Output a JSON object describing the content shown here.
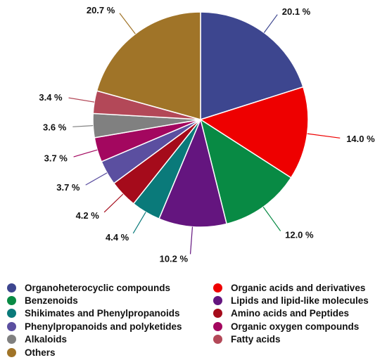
{
  "chart_data": {
    "type": "pie",
    "title": "",
    "start_angle_deg": 0,
    "direction": "clockwise",
    "slices": [
      {
        "label": "Organoheterocyclic compounds",
        "value": 20.1,
        "display": "20.1 %",
        "color": "#3d468f"
      },
      {
        "label": "Organic acids and derivatives",
        "value": 14.0,
        "display": "14.0 %",
        "color": "#ee0000"
      },
      {
        "label": "Benzenoids",
        "value": 12.0,
        "display": "12.0 %",
        "color": "#088a44"
      },
      {
        "label": "Lipids and lipid-like molecules",
        "value": 10.2,
        "display": "10.2 %",
        "color": "#64157f"
      },
      {
        "label": "Shikimates and Phenylpropanoids",
        "value": 4.4,
        "display": "4.4 %",
        "color": "#0a7a7a"
      },
      {
        "label": "Amino acids and Peptides",
        "value": 4.2,
        "display": "4.2 %",
        "color": "#a50b1b"
      },
      {
        "label": "Phenylpropanoids and polyketides",
        "value": 3.7,
        "display": "3.7 %",
        "color": "#5b4fa0"
      },
      {
        "label": "Organic oxygen compounds",
        "value": 3.7,
        "display": "3.7 %",
        "color": "#a3075f"
      },
      {
        "label": "Alkaloids",
        "value": 3.6,
        "display": "3.6 %",
        "color": "#808080"
      },
      {
        "label": "Fatty acids",
        "value": 3.4,
        "display": "3.4 %",
        "color": "#b34858"
      },
      {
        "label": "Others",
        "value": 20.7,
        "display": "20.7 %",
        "color": "#a07428"
      }
    ],
    "legend": {
      "placement": "bottom",
      "columns": [
        [
          "Organoheterocyclic compounds",
          "Benzenoids",
          "Shikimates and Phenylpropanoids",
          "Phenylpropanoids and polyketides",
          "Alkaloids",
          "Others"
        ],
        [
          "Organic acids and derivatives",
          "Lipids and lipid-like molecules",
          "Amino acids and Peptides",
          "Organic oxygen compounds",
          "Fatty acids"
        ]
      ]
    }
  }
}
